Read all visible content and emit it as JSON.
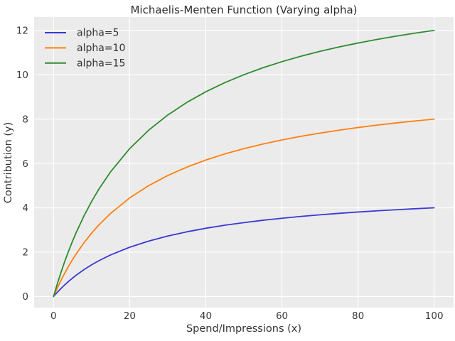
{
  "chart_data": {
    "type": "line",
    "title": "Michaelis-Menten Function (Varying alpha)",
    "xlabel": "Spend/Impressions (x)",
    "ylabel": "Contribution (y)",
    "x": [
      0,
      0.5,
      1,
      2,
      3,
      4,
      5,
      6,
      8,
      10,
      12,
      15,
      20,
      25,
      30,
      35,
      40,
      45,
      50,
      55,
      60,
      65,
      70,
      75,
      80,
      85,
      90,
      95,
      100
    ],
    "series": [
      {
        "name": "alpha=5",
        "color": "#3939d4",
        "values": [
          0,
          0.098,
          0.192,
          0.37,
          0.536,
          0.69,
          0.833,
          0.968,
          1.212,
          1.429,
          1.622,
          1.875,
          2.222,
          2.5,
          2.727,
          2.917,
          3.077,
          3.214,
          3.333,
          3.438,
          3.529,
          3.611,
          3.684,
          3.75,
          3.81,
          3.864,
          3.913,
          3.958,
          4.0
        ]
      },
      {
        "name": "alpha=10",
        "color": "#ff7f0e",
        "values": [
          0,
          0.196,
          0.385,
          0.741,
          1.071,
          1.379,
          1.667,
          1.935,
          2.424,
          2.857,
          3.243,
          3.75,
          4.444,
          5.0,
          5.455,
          5.833,
          6.154,
          6.429,
          6.667,
          6.875,
          7.059,
          7.222,
          7.368,
          7.5,
          7.619,
          7.727,
          7.826,
          7.917,
          8.0
        ]
      },
      {
        "name": "alpha=15",
        "color": "#2e8b2e",
        "values": [
          0,
          0.294,
          0.577,
          1.111,
          1.607,
          2.069,
          2.5,
          2.903,
          3.636,
          4.286,
          4.865,
          5.625,
          6.667,
          7.5,
          8.182,
          8.75,
          9.231,
          9.643,
          10.0,
          10.313,
          10.588,
          10.833,
          11.053,
          11.25,
          11.429,
          11.591,
          11.739,
          11.875,
          12.0
        ]
      }
    ],
    "xticks": [
      0,
      20,
      40,
      60,
      80,
      100
    ],
    "yticks": [
      0,
      2,
      4,
      6,
      8,
      10,
      12
    ],
    "xlim": [
      -5.1,
      105.1
    ],
    "ylim": [
      -0.5,
      12.6
    ],
    "grid": true,
    "legend_position": "upper-left",
    "plot_background": "#ebebeb",
    "grid_color": "#ffffff",
    "tick_color": "#3b3b3b",
    "text_color": "#333333"
  }
}
